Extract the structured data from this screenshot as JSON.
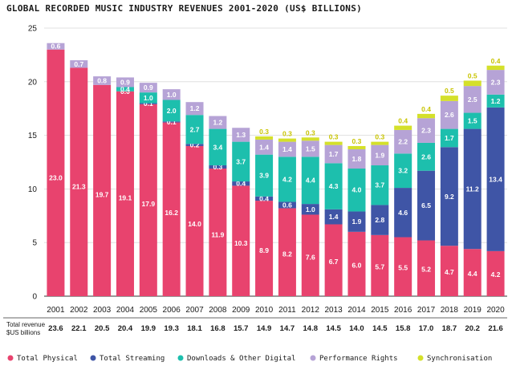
{
  "chart_data": {
    "type": "bar",
    "stacked": true,
    "title": "GLOBAL RECORDED MUSIC INDUSTRY REVENUES 2001-2020 (US$ BILLIONS)",
    "xlabel": "",
    "ylabel": "",
    "ylim": [
      0,
      25
    ],
    "yticks": [
      0,
      5,
      10,
      15,
      20,
      25
    ],
    "grid": "horizontal",
    "legend_position": "bottom",
    "categories": [
      "2001",
      "2002",
      "2003",
      "2004",
      "2005",
      "2006",
      "2007",
      "2008",
      "2009",
      "2010",
      "2011",
      "2012",
      "2013",
      "2014",
      "2015",
      "2016",
      "2017",
      "2018",
      "2019",
      "2020"
    ],
    "series": [
      {
        "name": "Total Physical",
        "color": "#e8436e",
        "values": [
          23.0,
          21.3,
          19.7,
          19.1,
          17.9,
          16.2,
          14.0,
          11.9,
          10.3,
          8.9,
          8.2,
          7.6,
          6.7,
          6.0,
          5.7,
          5.5,
          5.2,
          4.7,
          4.4,
          4.2
        ],
        "labels": [
          "23.0",
          "21.3",
          "19.7",
          "19.1",
          "17.9",
          "16.2",
          "14.0",
          "11.9",
          "10.3",
          "8.9",
          "8.2",
          "7.6",
          "6.7",
          "6.0",
          "5.7",
          "5.5",
          "5.2",
          "4.7",
          "4.4",
          "4.2"
        ]
      },
      {
        "name": "Total Streaming",
        "color": "#3f55a6",
        "values": [
          0,
          0,
          0,
          0,
          0.1,
          0.1,
          0.2,
          0.3,
          0.4,
          0.4,
          0.6,
          1.0,
          1.4,
          1.9,
          2.8,
          4.6,
          6.5,
          9.2,
          11.2,
          13.4
        ],
        "labels": [
          "",
          "",
          "",
          "0.0",
          "0.1",
          "0.1",
          "0.2",
          "0.3",
          "0.4",
          "0.4",
          "0.6",
          "1.0",
          "1.4",
          "1.9",
          "2.8",
          "4.6",
          "6.5",
          "9.2",
          "11.2",
          "13.4"
        ]
      },
      {
        "name": "Downloads & Other Digital",
        "color": "#1dbfad",
        "values": [
          0,
          0,
          0,
          0.4,
          1.0,
          2.0,
          2.7,
          3.4,
          3.7,
          3.9,
          4.2,
          4.4,
          4.3,
          4.0,
          3.7,
          3.2,
          2.6,
          1.7,
          1.5,
          1.2
        ],
        "labels": [
          "",
          "",
          "",
          "0.4",
          "1.0",
          "2.0",
          "2.7",
          "3.4",
          "3.7",
          "3.9",
          "4.2",
          "4.4",
          "4.3",
          "4.0",
          "3.7",
          "3.2",
          "2.6",
          "1.7",
          "1.5",
          "1.2"
        ]
      },
      {
        "name": "Performance Rights",
        "color": "#b6a3d6",
        "values": [
          0.6,
          0.7,
          0.8,
          0.9,
          0.9,
          1.0,
          1.2,
          1.2,
          1.3,
          1.4,
          1.4,
          1.5,
          1.7,
          1.8,
          1.9,
          2.2,
          2.3,
          2.6,
          2.5,
          2.3
        ],
        "labels": [
          "0.6",
          "0.7",
          "0.8",
          "0.9",
          "0.9",
          "1.0",
          "1.2",
          "1.2",
          "1.3",
          "1.4",
          "1.4",
          "1.5",
          "1.7",
          "1.8",
          "1.9",
          "2.2",
          "2.3",
          "2.6",
          "2.5",
          "2.3"
        ]
      },
      {
        "name": "Synchronisation",
        "color": "#d4e02a",
        "values": [
          0,
          0,
          0,
          0,
          0,
          0,
          0,
          0,
          0,
          0.3,
          0.3,
          0.3,
          0.3,
          0.3,
          0.3,
          0.4,
          0.4,
          0.5,
          0.5,
          0.4
        ],
        "labels": [
          "",
          "",
          "",
          "",
          "",
          "",
          "",
          "",
          "",
          "0.3",
          "0.3",
          "0.3",
          "0.3",
          "0.3",
          "0.3",
          "0.4",
          "0.4",
          "0.5",
          "0.5",
          "0.4"
        ]
      }
    ],
    "totals_label": "Total revenue\n$US billions",
    "totals": [
      "23.6",
      "22.1",
      "20.5",
      "20.4",
      "19.9",
      "19.3",
      "18.1",
      "16.8",
      "15.7",
      "14.9",
      "14.7",
      "14.8",
      "14.5",
      "14.0",
      "14.5",
      "15.8",
      "17.0",
      "18.7",
      "20.2",
      "21.6"
    ]
  }
}
